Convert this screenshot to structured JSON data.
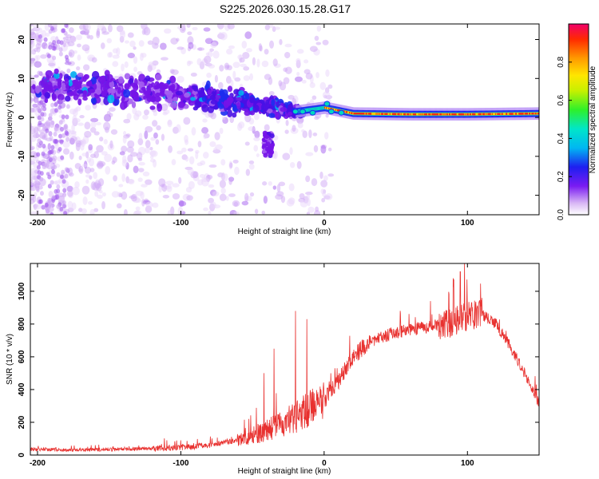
{
  "page_title": "S225.2026.030.15.28.G17",
  "chart_data": [
    {
      "type": "heatmap",
      "title": "S225.2026.030.15.28.G17",
      "xlabel": "Height of straight line (km)",
      "ylabel": "Frequency (Hz)",
      "xlim": [
        -205,
        150
      ],
      "ylim": [
        -25,
        24
      ],
      "x_ticks": [
        -200,
        -100,
        0,
        100
      ],
      "y_ticks": [
        -20,
        -10,
        0,
        10,
        20
      ],
      "colorbar": {
        "label": "Normalized spectral amplitude",
        "range": [
          0,
          1
        ],
        "ticks": [
          "0.0",
          "0.2",
          "0.4",
          "0.6",
          "0.8"
        ],
        "tick_values": [
          0,
          0.2,
          0.4,
          0.6,
          0.8
        ]
      },
      "ridge": {
        "description_points_x": [
          -200,
          -150,
          -100,
          -60,
          -40,
          -20,
          0,
          20,
          60,
          100,
          150
        ],
        "description_points_freq": [
          8,
          7,
          6,
          4,
          3,
          1.5,
          2.5,
          1,
          0.8,
          0.8,
          1
        ],
        "strong_carrier_from_x": -20
      }
    },
    {
      "type": "line",
      "xlabel": "Height of straight line (km)",
      "ylabel": "SNR (10 * v/v)",
      "xlim": [
        -205,
        150
      ],
      "ylim": [
        0,
        1170
      ],
      "x_ticks": [
        -200,
        -100,
        0,
        100
      ],
      "y_ticks": [
        0,
        200,
        400,
        600,
        800,
        1000
      ],
      "series": [
        {
          "name": "SNR",
          "color": "#e8312f",
          "envelope_x": [
            -205,
            -180,
            -150,
            -120,
            -100,
            -80,
            -60,
            -40,
            -20,
            0,
            10,
            20,
            30,
            50,
            70,
            90,
            100,
            110,
            120,
            130,
            140,
            150
          ],
          "envelope_y": [
            35,
            30,
            35,
            40,
            45,
            60,
            90,
            150,
            230,
            330,
            450,
            600,
            680,
            750,
            780,
            810,
            850,
            860,
            800,
            660,
            500,
            320
          ],
          "spikes": [
            {
              "x": -20,
              "y": 880
            },
            {
              "x": -12,
              "y": 830
            },
            {
              "x": -42,
              "y": 500
            },
            {
              "x": -35,
              "y": 650
            },
            {
              "x": 95,
              "y": 1120
            },
            {
              "x": 98,
              "y": 1170
            },
            {
              "x": 90,
              "y": 1080
            }
          ]
        }
      ]
    }
  ]
}
